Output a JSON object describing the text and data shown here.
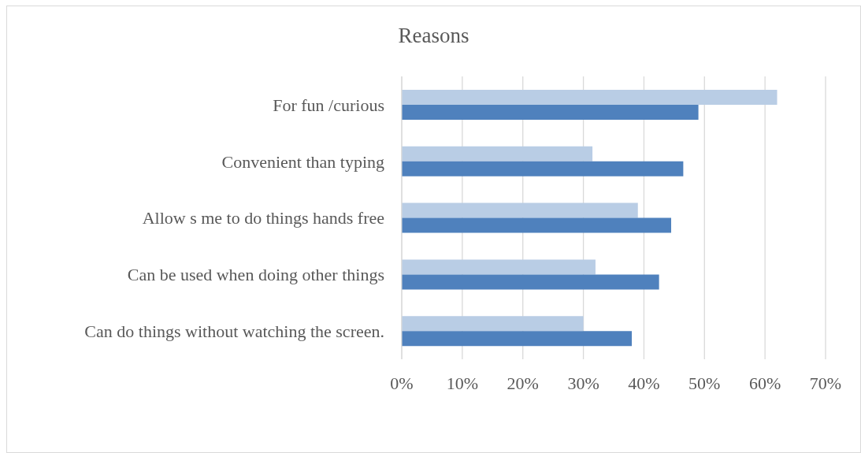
{
  "chart_data": {
    "type": "bar",
    "orientation": "horizontal",
    "title": "Reasons",
    "categories": [
      "For fun /curious",
      "Convenient than typing",
      "Allow s me to do things hands free",
      "Can be used when doing other things",
      "Can do things without watching the screen."
    ],
    "series": [
      {
        "color": "#b9cde5",
        "values": [
          62,
          31.5,
          39,
          32,
          30
        ]
      },
      {
        "color": "#4f81bd",
        "values": [
          49,
          46.5,
          44.5,
          42.5,
          38
        ]
      }
    ],
    "xlim": [
      0,
      70
    ],
    "xticks": [
      {
        "value": 0,
        "label": "0%"
      },
      {
        "value": 10,
        "label": "10%"
      },
      {
        "value": 20,
        "label": "20%"
      },
      {
        "value": 30,
        "label": "30%"
      },
      {
        "value": 40,
        "label": "40%"
      },
      {
        "value": 50,
        "label": "50%"
      },
      {
        "value": 60,
        "label": "60%"
      },
      {
        "value": 70,
        "label": "70%"
      }
    ],
    "grid": "x"
  }
}
